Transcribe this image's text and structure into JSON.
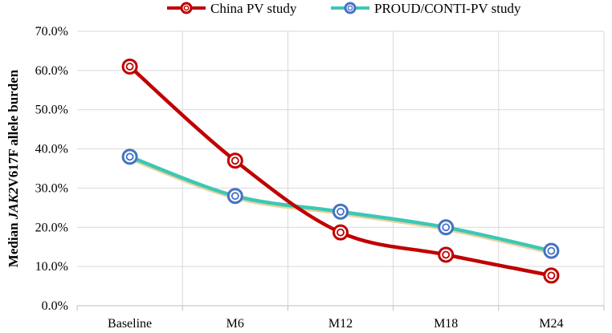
{
  "chart_data": {
    "type": "line",
    "title": "",
    "xlabel": "",
    "ylabel_parts": [
      {
        "text": "Median ",
        "italic": false
      },
      {
        "text": "JAK2",
        "italic": true
      },
      {
        "text": "V617F  allele burden",
        "italic": false
      }
    ],
    "categories": [
      "Baseline",
      "M6",
      "M12",
      "M18",
      "M24"
    ],
    "ylim": [
      0,
      70
    ],
    "yticks": [
      0,
      10,
      20,
      30,
      40,
      50,
      60,
      70
    ],
    "ytick_labels": [
      "0.0%",
      "10.0%",
      "20.0%",
      "30.0%",
      "40.0%",
      "50.0%",
      "60.0%",
      "70.0%"
    ],
    "grid": true,
    "legend_position": "top",
    "series": [
      {
        "name": "China PV study",
        "values": [
          61,
          37,
          18.7,
          13,
          7.7
        ],
        "color": "#c00000",
        "smooth": true
      },
      {
        "name": "PROUD/CONTI-PV study",
        "values": [
          38,
          28,
          24,
          20,
          14
        ],
        "color": "#3cc8b4",
        "marker_color": "#4472c4",
        "smooth": true
      }
    ]
  }
}
